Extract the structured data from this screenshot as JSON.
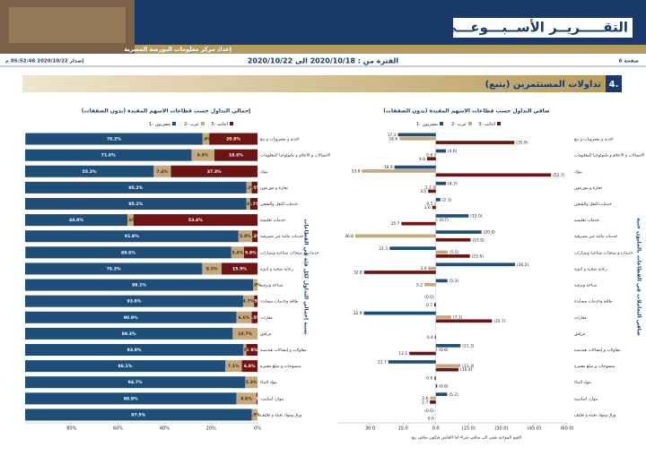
{
  "header": {
    "title": "التقـــــريــر الأســبـــوعـــي",
    "subtitle": "إعداد مركز معلومات البورصة المصرية",
    "page": "صفحة 6",
    "period": "الفترة من : 2020/10/18 الى 2020/10/22",
    "issued": "إصدار 2020/10/22 05:52:46 م"
  },
  "section": {
    "number": "4.",
    "title": "تداولات المستثمرين (يتبع)"
  },
  "chart_data": [
    {
      "type": "bar",
      "title": "صافي التداول حسب قطاعات الاسهم المقيدة (بدون الصفقات)",
      "y_label": "صافي التعاملات في القطاعات بالمليون جنيه",
      "note": "القيم الموجبة تشير الى صافي شراء اما العكس فيكون صافي بيع",
      "categories": [
        "اغذية و مشروبات و تبغ",
        "الاتصالات و الاعلام و تكنولوجيا المعلومات",
        "بنوك",
        "تجارة و موزعون",
        "خدمات النقل والشحن",
        "خدمات تعليمية",
        "خدمات مالية غير مصرفية",
        "خدمات و منتجات صناعية وسيارات",
        "رعاية صحية و ادوية",
        "سياحة وترفيه",
        "طاقة وخدمات مساندة",
        "عقارات",
        "مرافق",
        "مقاولات و إنشاءات هندسية",
        "منسوجات و سلع معمرة",
        "مواد البناء",
        "موارد اساسية",
        "ورق ومواد تعبئة و تغليف"
      ],
      "series": [
        {
          "name": "1- مصريون",
          "color": "#1f4e79",
          "values": [
            17.3,
            -4.6,
            18.9,
            -4.7,
            -2.1,
            -15.0,
            -20.9,
            21.1,
            -36.2,
            -5.3,
            0.0,
            32.9,
            null,
            -11.3,
            21.7,
            0.6,
            -5.2,
            0.0
          ],
          "value_labels": [
            "17.3",
            "(4.6)",
            "18.9",
            "(4.7)",
            "(2.1)",
            "(15.0)",
            "(20.9)",
            "21.1",
            "(36.2)",
            "(5.3)",
            "(0.0)",
            "32.9",
            null,
            "(11.3)",
            "21.7",
            "0.6",
            "(5.2)",
            "(0.0)"
          ]
        },
        {
          "name": "2- عرب",
          "color": "#c4a97d",
          "values": [
            16.6,
            0.6,
            33.8,
            1.2,
            0.5,
            -0.7,
            36.8,
            -5.5,
            3.4,
            5.2,
            null,
            -7.1,
            null,
            -0.6,
            -11.3,
            null,
            2.6,
            null
          ],
          "value_labels": [
            "16.6",
            "0.6",
            "33.8",
            "1.2",
            "0.5",
            "(0.7)",
            "36.8",
            "(5.5)",
            "3.4",
            "5.2",
            null,
            "(7.1)",
            null,
            "(0.6)",
            "(11.3)",
            null,
            "2.6",
            null
          ]
        },
        {
          "name": "3- اجانب",
          "color": "#6e1414",
          "values": [
            -35.9,
            4.0,
            -52.7,
            3.5,
            1.6,
            15.7,
            -15.9,
            -15.6,
            32.8,
            null,
            0.7,
            -25.7,
            0.4,
            12.1,
            -10.4,
            -0.6,
            2.7,
            0.0
          ],
          "value_labels": [
            "(35.9)",
            "4.0",
            "(52.7)",
            "3.5",
            "1.6",
            "15.7",
            "(15.9)",
            "(15.6)",
            "32.8",
            null,
            "0.7",
            "(25.7)",
            "0.4",
            "12.1",
            "(10.4)",
            "(0.6)",
            "2.7",
            "0.0"
          ]
        }
      ],
      "xlim": [
        45,
        -60
      ],
      "xticks": [
        {
          "value": 30,
          "label": "30.0"
        },
        {
          "value": 15,
          "label": "15.0"
        },
        {
          "value": 0,
          "label": "0.0"
        },
        {
          "value": -15,
          "label": "(15.0)"
        },
        {
          "value": -30,
          "label": "(30.0)"
        },
        {
          "value": -45,
          "label": "(45.0)"
        },
        {
          "value": -60,
          "label": "(60.0)"
        }
      ]
    },
    {
      "type": "stacked_bar",
      "title": "إجمالي التداول حسب قطاعات الاسهم المقيدة (بدون الصفقات)",
      "y_label": "نسبة إجمالي التداول لكل فئة في القطاعات",
      "categories": [
        "اغذية و مشروبات و تبغ",
        "الاتصالات و الاعلام و تكنولوجيا المعلومات",
        "بنوك",
        "تجارة و موزعون",
        "خدمات النقل والشحن",
        "خدمات تعليمية",
        "خدمات مالية غير مصرفية",
        "خدمات و منتجات صناعية وسيارات",
        "رعاية صحية و ادوية",
        "سياحة وترفيه",
        "طاقة وخدمات مساندة",
        "عقارات",
        "مرافق",
        "مقاولات و إنشاءات هندسية",
        "منسوجات و سلع معمرة",
        "مواد البناء",
        "موارد اساسية",
        "ورق ومواد تعبئة و تغليف"
      ],
      "series": [
        {
          "name": "1- مصريون",
          "color": "#1f4e79",
          "values": [
            76.2,
            71.6,
            55.3,
            95.2,
            95.2,
            44.0,
            91.8,
            88.6,
            76.2,
            98.1,
            93.8,
            90.9,
            89.3,
            93.9,
            86.1,
            94.7,
            90.9,
            97.5
          ],
          "value_labels": [
            "76.2%",
            "71.6%",
            "55.3%",
            "95.2%",
            "95.2%",
            "44.0%",
            "91.8%",
            "88.6%",
            "76.2%",
            "98.1%",
            "93.8%",
            "90.9%",
            "89.3%",
            "93.9%",
            "86.1%",
            "94.7%",
            "90.9%",
            "97.5%"
          ]
        },
        {
          "name": "2- عرب",
          "color": "#c4a97d",
          "values": [
            2.9,
            9.8,
            7.4,
            2.3,
            1.6,
            2.6,
            5.9,
            5.4,
            8.3,
            1.9,
            4.7,
            6.6,
            10.7,
            1.3,
            7.1,
            5.3,
            8.6,
            2.5
          ],
          "value_labels": [
            "2.9%",
            "9.8%",
            "7.4%",
            "2.3%",
            "1.6%",
            "2.6%",
            "5.9%",
            "5.4%",
            "8.3%",
            "1.9%",
            "4.7%",
            "6.6%",
            "10.7%",
            "1.3%",
            "7.1%",
            "5.3%",
            "8.6%",
            "2.5%"
          ]
        },
        {
          "name": "3- اجانب",
          "color": "#6e1414",
          "values": [
            20.8,
            18.6,
            37.3,
            2.5,
            3.2,
            53.4,
            2.3,
            5.9,
            15.5,
            null,
            1.5,
            2.5,
            null,
            4.8,
            6.8,
            null,
            0.5,
            null
          ],
          "value_labels": [
            "20.8%",
            "18.6%",
            "37.3%",
            "2.5%",
            "3.2%",
            "53.4%",
            "2.3%",
            "5.9%",
            "15.5%",
            null,
            "1.5%",
            "2.5%",
            null,
            "4.8%",
            "6.8%",
            null,
            "0.5%",
            null
          ]
        }
      ],
      "xlim": [
        100,
        0
      ],
      "xticks": [
        {
          "value": 80,
          "label": "80%"
        },
        {
          "value": 60,
          "label": "60%"
        },
        {
          "value": 40,
          "label": "40%"
        },
        {
          "value": 20,
          "label": "20%"
        },
        {
          "value": 0,
          "label": "0%"
        }
      ]
    }
  ]
}
